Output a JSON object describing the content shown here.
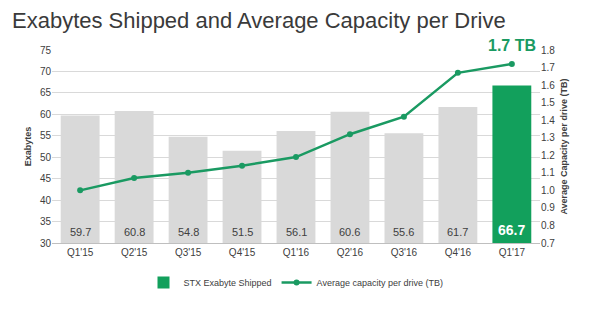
{
  "chart_data": {
    "type": "bar",
    "title": "Exabytes Shipped and Average Capacity per Drive",
    "categories": [
      "Q1'15",
      "Q2'15",
      "Q3'15",
      "Q4'15",
      "Q1'16",
      "Q2'16",
      "Q3'16",
      "Q4'16",
      "Q1'17"
    ],
    "series": [
      {
        "name": "STX Exabyte Shipped",
        "type": "bar",
        "color": "#12a05c",
        "colors": [
          "#d9d9d9",
          "#d9d9d9",
          "#d9d9d9",
          "#d9d9d9",
          "#d9d9d9",
          "#d9d9d9",
          "#d9d9d9",
          "#d9d9d9",
          "#12a05c"
        ],
        "values": [
          59.7,
          60.8,
          54.8,
          51.5,
          56.1,
          60.6,
          55.6,
          61.7,
          66.7
        ],
        "data_labels": true
      },
      {
        "name": "Average capacity per drive (TB)",
        "type": "line",
        "axis": "y2",
        "color": "#1a9a62",
        "marker": "circle",
        "values": [
          1.0,
          1.07,
          1.1,
          1.14,
          1.19,
          1.32,
          1.42,
          1.67,
          1.72
        ]
      }
    ],
    "ylabel": "Exabytes",
    "y2label": "Average Capacity per drive (TB)",
    "ylim": [
      30,
      75
    ],
    "yticks": [
      30,
      35,
      40,
      45,
      50,
      55,
      60,
      65,
      70,
      75
    ],
    "y2lim": [
      0.7,
      1.8
    ],
    "y2ticks": [
      0.7,
      0.8,
      0.9,
      {
        "value": 1.0,
        "label": "1.0"
      },
      1.1,
      1.2,
      1.3,
      1.4,
      1.5,
      1.6,
      1.7,
      1.8
    ],
    "annotations": [
      {
        "text": "1.7 TB",
        "x": "Q1'17",
        "y": 1.72,
        "axis": "y2"
      }
    ],
    "grid": true,
    "legend": "bottom"
  }
}
